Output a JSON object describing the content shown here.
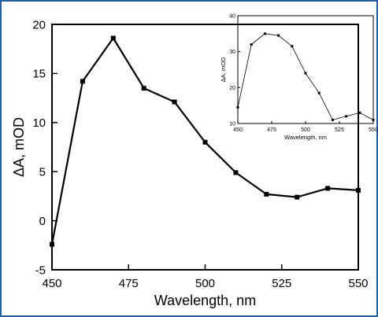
{
  "chart_data": [
    {
      "type": "line",
      "xlabel": "Wavelength, nm",
      "ylabel": "ΔA, mOD",
      "xlim": [
        450,
        550
      ],
      "ylim": [
        -5,
        20
      ],
      "x_ticks": [
        450,
        475,
        500,
        525,
        550
      ],
      "y_ticks": [
        -5,
        0,
        5,
        10,
        15,
        20
      ],
      "grid": false,
      "marker": "square",
      "series": [
        {
          "x": [
            450,
            460,
            470,
            480,
            490,
            500,
            510,
            520,
            530,
            540,
            550
          ],
          "values": [
            -2.4,
            14.2,
            18.6,
            13.5,
            12.1,
            8.0,
            4.9,
            2.7,
            2.4,
            3.3,
            3.1
          ]
        }
      ]
    },
    {
      "type": "line",
      "xlabel": "Wavelength, nm",
      "ylabel": "ΔA, mOD",
      "xlim": [
        450,
        550
      ],
      "ylim": [
        10,
        40
      ],
      "x_ticks": [
        450,
        475,
        500,
        525,
        550
      ],
      "y_ticks": [
        10,
        20,
        30,
        40
      ],
      "grid": false,
      "marker": "square",
      "series": [
        {
          "x": [
            450,
            460,
            470,
            480,
            490,
            500,
            510,
            520,
            530,
            540,
            550
          ],
          "values": [
            14.5,
            32,
            35,
            34.5,
            31.5,
            24,
            18.5,
            11,
            12,
            13,
            11
          ]
        }
      ]
    }
  ]
}
